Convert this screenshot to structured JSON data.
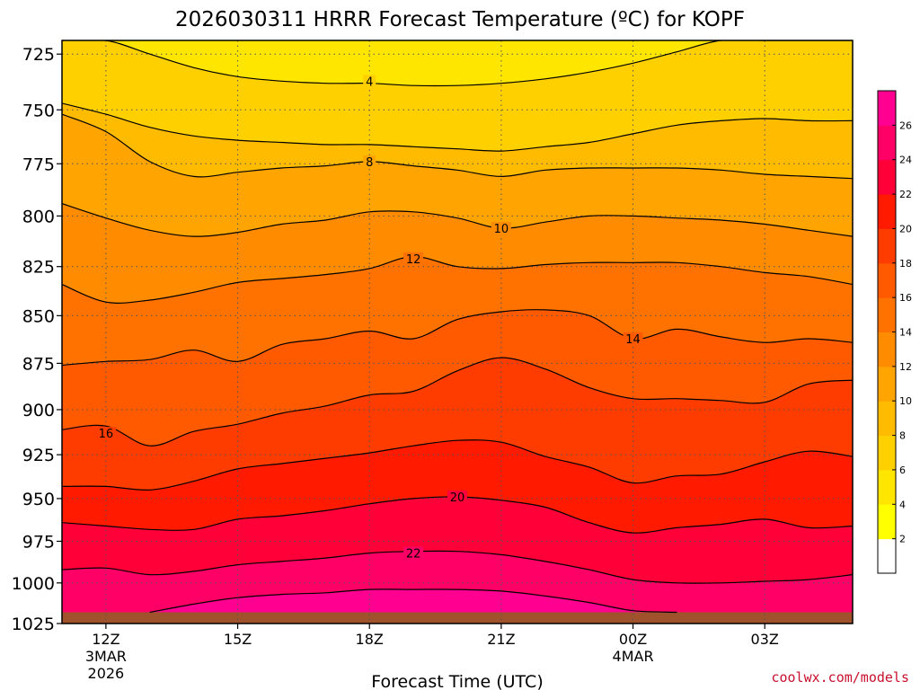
{
  "title": "2026030311 HRRR Forecast Temperature (ºC) for KOPF",
  "xlabel": "Forecast Time (UTC)",
  "credit": "coolwx.com/models",
  "colors": {
    "background": "#ffffff",
    "grid": "#555555",
    "contour": "#000000",
    "ground": "#a0522d"
  },
  "chart_data": {
    "type": "heatmap",
    "variable": "Temperature",
    "units": "ºC",
    "y_axis": {
      "label": "",
      "scale": "log-pressure",
      "inverted": true,
      "ticks": [
        725,
        750,
        775,
        800,
        825,
        850,
        875,
        900,
        925,
        950,
        975,
        1000,
        1025
      ],
      "range": [
        1025,
        719
      ]
    },
    "x_axis": {
      "range_hours": [
        11,
        29
      ],
      "ticks": [
        {
          "hour": 12,
          "label": "12Z",
          "sub": [
            "3MAR",
            "2026"
          ]
        },
        {
          "hour": 15,
          "label": "15Z",
          "sub": []
        },
        {
          "hour": 18,
          "label": "18Z",
          "sub": []
        },
        {
          "hour": 21,
          "label": "21Z",
          "sub": []
        },
        {
          "hour": 24,
          "label": "00Z",
          "sub": [
            "4MAR"
          ]
        },
        {
          "hour": 27,
          "label": "03Z",
          "sub": []
        }
      ]
    },
    "grid": true,
    "colorbar": {
      "levels": [
        2,
        4,
        6,
        8,
        10,
        12,
        14,
        16,
        18,
        20,
        22,
        24,
        26
      ],
      "colors": [
        "#ffffff",
        "#ffff00",
        "#ffe600",
        "#ffd000",
        "#ffbb00",
        "#ffa400",
        "#ff8c00",
        "#ff7200",
        "#ff5a00",
        "#ff3c00",
        "#ff1a00",
        "#ff0038",
        "#ff0066",
        "#ff0090",
        "#ff00aa"
      ]
    },
    "surface_pressure_hpa": 1018,
    "contours": [
      {
        "level": 4,
        "label": "4",
        "label_at": [
          18,
          737
        ],
        "hours": [
          11,
          12,
          13,
          14,
          15,
          16,
          17,
          18,
          19,
          20,
          21,
          22,
          23,
          24,
          25,
          26,
          27,
          28,
          29
        ],
        "pressures": [
          719,
          719,
          725,
          731,
          735,
          737,
          738,
          738,
          739,
          739,
          738,
          736,
          733,
          729,
          724,
          719,
          719,
          719,
          719
        ]
      },
      {
        "level": 6,
        "label": "",
        "label_at": null,
        "hours": [
          11,
          12,
          13,
          14,
          15,
          16,
          17,
          18,
          19,
          20,
          21,
          22,
          23,
          24,
          25,
          26,
          27,
          28,
          29
        ],
        "pressures": [
          747,
          752,
          758,
          762,
          764,
          765,
          766,
          766,
          767,
          768,
          769,
          767,
          765,
          761,
          757,
          755,
          754,
          755,
          755
        ]
      },
      {
        "level": 8,
        "label": "8",
        "label_at": [
          18,
          774
        ],
        "hours": [
          11,
          12,
          13,
          14,
          15,
          16,
          17,
          18,
          19,
          20,
          21,
          22,
          23,
          24,
          25,
          26,
          27,
          28,
          29
        ],
        "pressures": [
          752,
          760,
          774,
          781,
          779,
          777,
          776,
          774,
          776,
          778,
          781,
          778,
          777,
          777,
          777,
          778,
          780,
          781,
          782
        ]
      },
      {
        "level": 10,
        "label": "10",
        "label_at": [
          21,
          806
        ],
        "hours": [
          11,
          12,
          13,
          14,
          15,
          16,
          17,
          18,
          19,
          20,
          21,
          22,
          23,
          24,
          25,
          26,
          27,
          28,
          29
        ],
        "pressures": [
          794,
          801,
          807,
          810,
          808,
          804,
          802,
          798,
          798,
          801,
          806,
          803,
          800,
          800,
          801,
          802,
          804,
          807,
          810
        ]
      },
      {
        "level": 12,
        "label": "12",
        "label_at": [
          19,
          821
        ],
        "hours": [
          11,
          12,
          13,
          14,
          15,
          16,
          17,
          18,
          19,
          20,
          21,
          22,
          23,
          24,
          25,
          26,
          27,
          28,
          29
        ],
        "pressures": [
          834,
          843,
          842,
          838,
          833,
          831,
          829,
          826,
          820,
          825,
          826,
          824,
          823,
          823,
          823,
          825,
          828,
          830,
          834
        ]
      },
      {
        "level": 14,
        "label": "14",
        "label_at": [
          24,
          862
        ],
        "hours": [
          11,
          12,
          13,
          14,
          15,
          16,
          17,
          18,
          19,
          20,
          21,
          22,
          23,
          24,
          25,
          26,
          27,
          28,
          29
        ],
        "pressures": [
          876,
          874,
          873,
          868,
          874,
          865,
          862,
          858,
          862,
          852,
          848,
          847,
          850,
          862,
          857,
          861,
          864,
          862,
          864
        ]
      },
      {
        "level": 16,
        "label": "16",
        "label_at": [
          12,
          913
        ],
        "hours": [
          11,
          12,
          13,
          14,
          15,
          16,
          17,
          18,
          19,
          20,
          21,
          22,
          23,
          24,
          25,
          26,
          27,
          28,
          29
        ],
        "pressures": [
          911,
          909,
          920,
          912,
          908,
          902,
          898,
          892,
          890,
          879,
          872,
          878,
          888,
          894,
          894,
          895,
          896,
          886,
          884
        ]
      },
      {
        "level": 18,
        "label": "",
        "label_at": null,
        "hours": [
          11,
          12,
          13,
          14,
          15,
          16,
          17,
          18,
          19,
          20,
          21,
          22,
          23,
          24,
          25,
          26,
          27,
          28,
          29
        ],
        "pressures": [
          943,
          943,
          945,
          940,
          933,
          930,
          927,
          924,
          920,
          917,
          918,
          926,
          932,
          941,
          937,
          936,
          929,
          923,
          926
        ]
      },
      {
        "level": 20,
        "label": "20",
        "label_at": [
          20,
          949
        ],
        "hours": [
          11,
          12,
          13,
          14,
          15,
          16,
          17,
          18,
          19,
          20,
          21,
          22,
          23,
          24,
          25,
          26,
          27,
          28,
          29
        ],
        "pressures": [
          964,
          966,
          968,
          968,
          962,
          960,
          957,
          953,
          950,
          949,
          951,
          955,
          964,
          970,
          967,
          965,
          962,
          967,
          966
        ]
      },
      {
        "level": 22,
        "label": "22",
        "label_at": [
          19,
          982
        ],
        "hours": [
          11,
          12,
          13,
          14,
          15,
          16,
          17,
          18,
          19,
          20,
          21,
          22,
          23,
          24,
          25,
          26,
          27,
          28,
          29
        ],
        "pressures": [
          992,
          991,
          995,
          993,
          989,
          987,
          985,
          982,
          981,
          981,
          983,
          987,
          992,
          998,
          1000,
          1000,
          999,
          998,
          995
        ]
      },
      {
        "level": 24,
        "label": "",
        "label_at": null,
        "hours": [
          13,
          14,
          15,
          16,
          17,
          18,
          19,
          20,
          21,
          22,
          23,
          24,
          25
        ],
        "pressures": [
          1018,
          1013,
          1009,
          1007,
          1006,
          1004,
          1004,
          1004,
          1005,
          1008,
          1012,
          1017,
          1018
        ]
      }
    ]
  }
}
